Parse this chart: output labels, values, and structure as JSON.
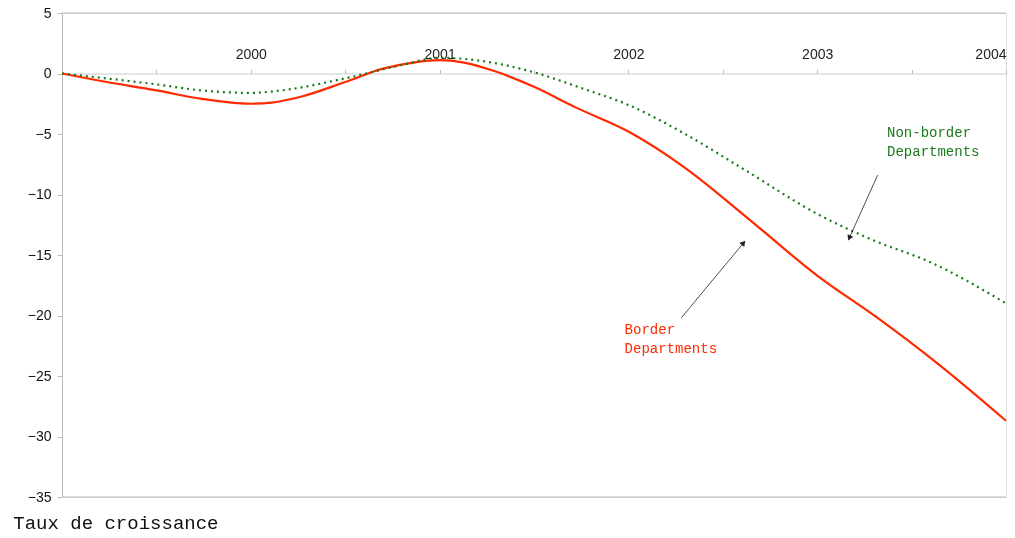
{
  "chart_data": {
    "type": "line",
    "title": "Taux de croissance",
    "xlim": [
      1999,
      2004
    ],
    "xticks": [
      {
        "value": 1999.5,
        "label": null
      },
      2000,
      {
        "value": 2000.5,
        "label": null
      },
      2001,
      {
        "value": 2001.5,
        "label": null
      },
      2002,
      {
        "value": 2002.5,
        "label": null
      },
      2003,
      {
        "value": 2003.5,
        "label": null
      },
      2004
    ],
    "ylim": [
      -35,
      5
    ],
    "yticks": [
      -35,
      -30,
      -25,
      -20,
      -15,
      -10,
      -5,
      0,
      5
    ],
    "grid": false,
    "marker": "none",
    "series": [
      {
        "name": "Border\nDepartments",
        "color": "#ff2a00",
        "line_style": "solid",
        "x": [
          1999,
          1999.2,
          1999.5,
          1999.74,
          2000,
          2000.11,
          2000.27,
          2000.5,
          2000.7,
          2000.86,
          2001,
          2001.13,
          2001.29,
          2001.5,
          2001.72,
          2002,
          2002.3,
          2002.62,
          2003,
          2003.32,
          2003.64,
          2004
        ],
        "values": [
          0,
          -0.6,
          -1.4,
          -2.1,
          -2.5,
          -2.4,
          -1.9,
          -0.7,
          0.4,
          0.9,
          1.1,
          0.9,
          0.2,
          -1.1,
          -2.8,
          -4.8,
          -7.8,
          -11.8,
          -16.7,
          -20.2,
          -24.0,
          -28.7
        ]
      },
      {
        "name": "Non-border\nDepartments",
        "color": "#1a7a1a",
        "line_style": "dotted",
        "x": [
          1999,
          1999.5,
          1999.74,
          2000,
          2000.16,
          2000.5,
          2000.8,
          2001,
          2001.24,
          2001.5,
          2001.75,
          2002,
          2002.3,
          2002.62,
          2003,
          2003.3,
          2003.6,
          2004
        ],
        "values": [
          0,
          -0.9,
          -1.4,
          -1.6,
          -1.4,
          -0.4,
          0.7,
          1.3,
          1.0,
          0.1,
          -1.2,
          -2.6,
          -5.0,
          -8.0,
          -11.6,
          -13.8,
          -15.6,
          -19.0
        ]
      }
    ]
  }
}
